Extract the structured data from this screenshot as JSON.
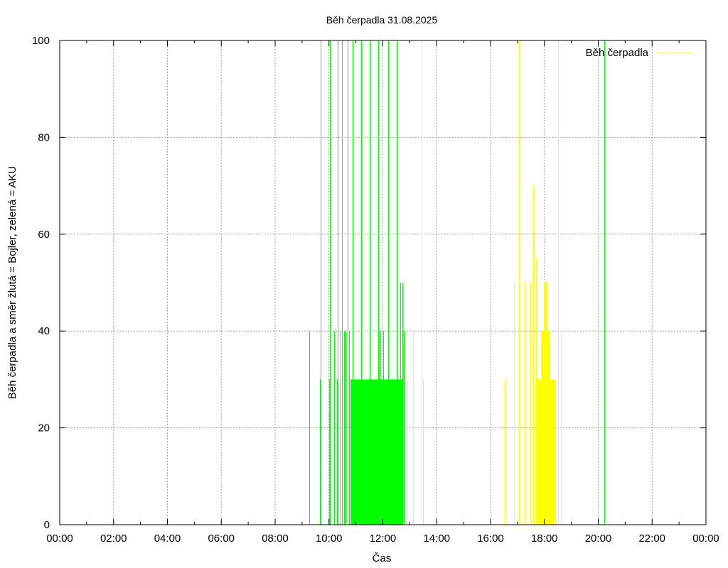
{
  "chart_data": {
    "type": "impulse",
    "title": "Běh čerpadla 31.08.2025",
    "xlabel": "Čas",
    "ylabel": "Běh čerpadla a směr žlutá = Bojler, zelená = AKU",
    "xlim": [
      0,
      24
    ],
    "ylim": [
      0,
      100
    ],
    "x_ticks": [
      "00:00",
      "02:00",
      "04:00",
      "06:00",
      "08:00",
      "10:00",
      "12:00",
      "14:00",
      "16:00",
      "18:00",
      "20:00",
      "22:00",
      "00:00"
    ],
    "y_ticks": [
      0,
      20,
      40,
      60,
      80,
      100
    ],
    "legend": {
      "label": "Běh čerpadla",
      "position": "top-right",
      "color": "#ffff00"
    },
    "grid": true,
    "series": [
      {
        "name": "AKU",
        "color": "#00ff00",
        "spikes": [
          {
            "x": 9.27,
            "y": 40
          },
          {
            "x": 9.67,
            "y": 30
          },
          {
            "x": 9.7,
            "y": 100
          },
          {
            "x": 10.0,
            "y": 30
          },
          {
            "x": 10.03,
            "y": 100
          },
          {
            "x": 10.2,
            "y": 40
          },
          {
            "x": 10.3,
            "y": 30
          },
          {
            "x": 10.33,
            "y": 100
          },
          {
            "x": 10.42,
            "y": 40
          },
          {
            "x": 10.47,
            "y": 100
          },
          {
            "x": 10.55,
            "y": 40
          },
          {
            "x": 10.62,
            "y": 40
          },
          {
            "x": 10.7,
            "y": 100
          },
          {
            "x": 10.75,
            "y": 40
          },
          {
            "x": 10.8,
            "y": 30
          },
          {
            "x": 10.88,
            "y": 100
          },
          {
            "x": 11.2,
            "y": 100
          },
          {
            "x": 11.52,
            "y": 100
          },
          {
            "x": 11.82,
            "y": 100
          },
          {
            "x": 11.88,
            "y": 40
          },
          {
            "x": 12.0,
            "y": 40
          },
          {
            "x": 12.2,
            "y": 100
          },
          {
            "x": 12.52,
            "y": 100
          },
          {
            "x": 12.65,
            "y": 50
          },
          {
            "x": 12.72,
            "y": 50
          },
          {
            "x": 12.77,
            "y": 40
          },
          {
            "x": 20.22,
            "y": 100
          }
        ],
        "blocks": [
          {
            "x0": 10.82,
            "x1": 12.75,
            "y": 30
          }
        ]
      },
      {
        "name": "Bojler",
        "color": "#ffff00",
        "spikes": [
          {
            "x": 12.9,
            "y": 30
          },
          {
            "x": 13.12,
            "y": 40
          },
          {
            "x": 13.45,
            "y": 100
          },
          {
            "x": 13.5,
            "y": 30
          },
          {
            "x": 16.52,
            "y": 30
          },
          {
            "x": 16.88,
            "y": 50
          },
          {
            "x": 17.05,
            "y": 100
          },
          {
            "x": 17.28,
            "y": 50
          },
          {
            "x": 17.48,
            "y": 50
          },
          {
            "x": 17.58,
            "y": 70
          },
          {
            "x": 17.62,
            "y": 60
          },
          {
            "x": 17.68,
            "y": 55
          },
          {
            "x": 18.52,
            "y": 100
          },
          {
            "x": 18.62,
            "y": 40
          }
        ],
        "blocks": [
          {
            "x0": 17.68,
            "x1": 18.3,
            "y": 30
          },
          {
            "x0": 17.88,
            "x1": 18.22,
            "y": 40
          },
          {
            "x0": 17.98,
            "x1": 18.12,
            "y": 50
          },
          {
            "x0": 18.3,
            "x1": 18.42,
            "y": 30
          }
        ]
      }
    ]
  }
}
